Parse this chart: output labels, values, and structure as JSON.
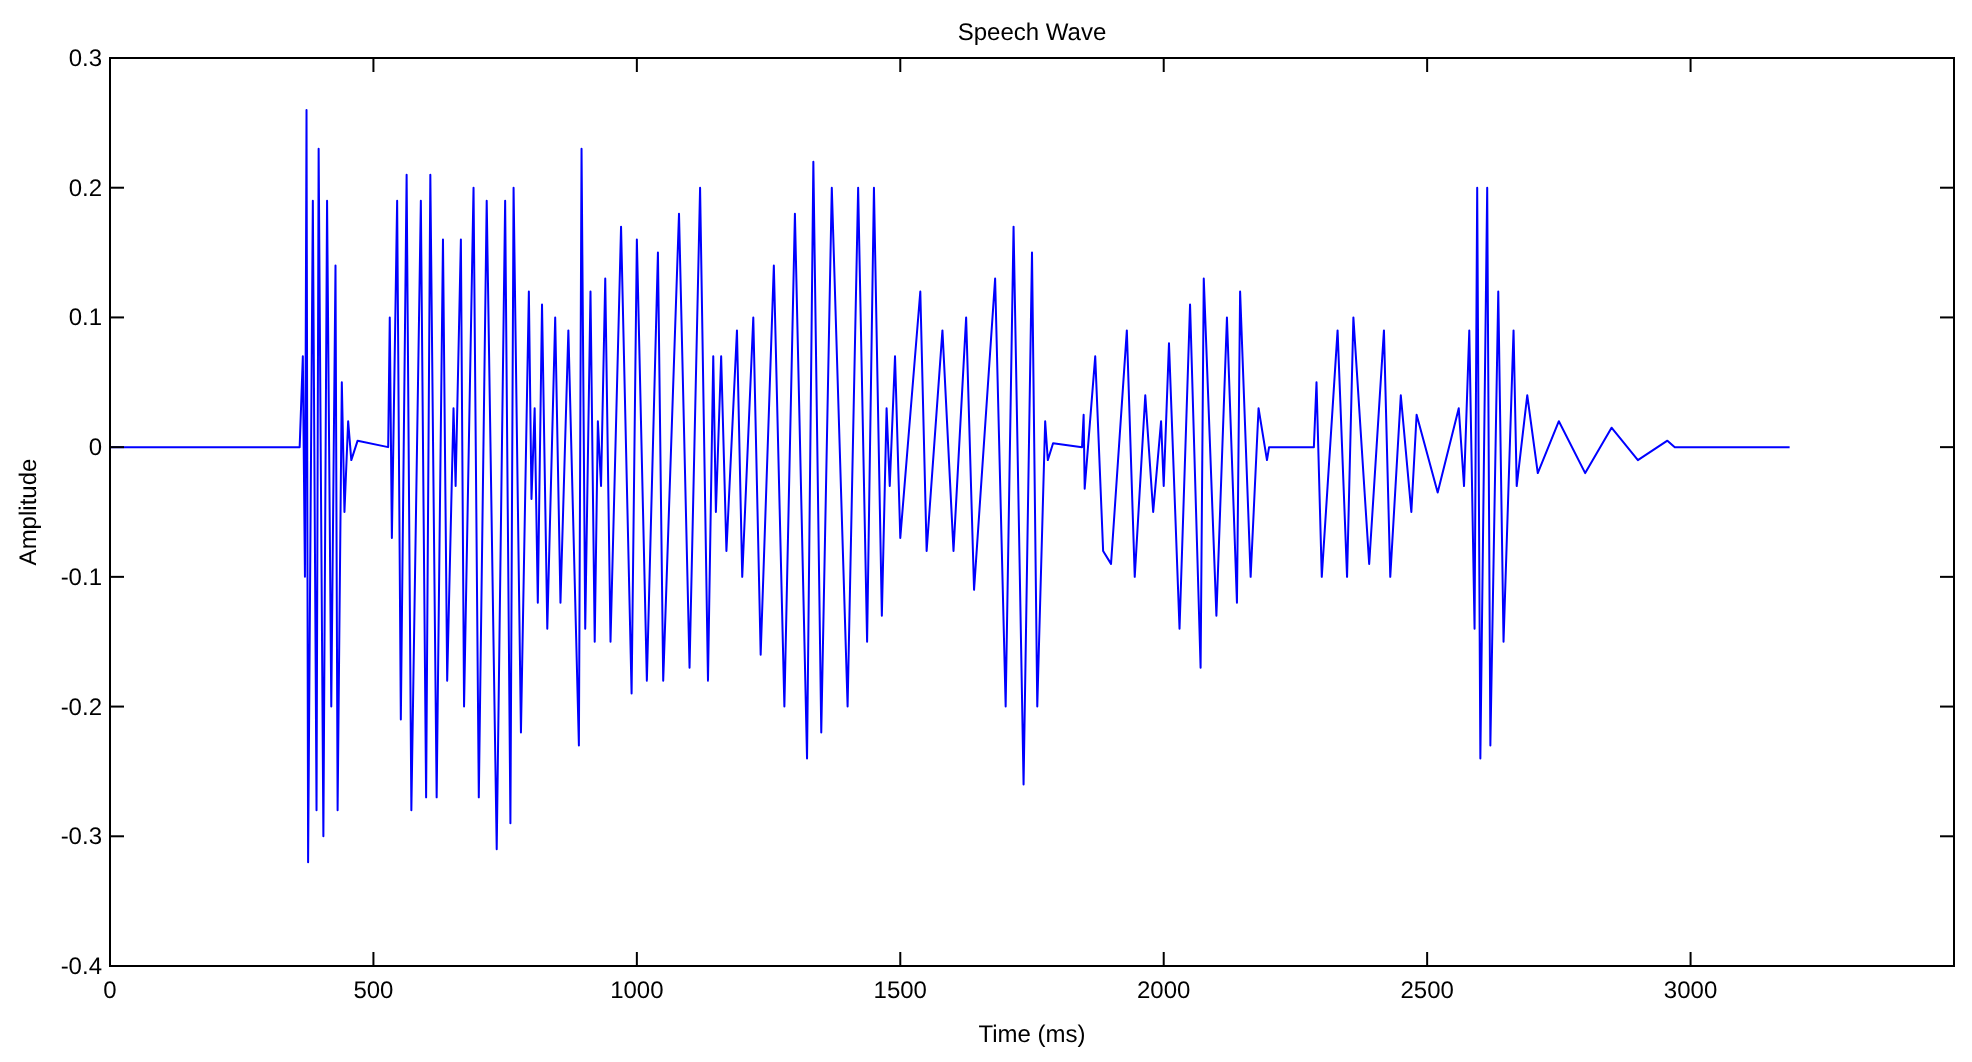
{
  "chart_data": {
    "type": "line",
    "title": "Speech Wave",
    "xlabel": "Time (ms)",
    "ylabel": "Amplitude",
    "xlim": [
      0,
      3500
    ],
    "xticks": [
      0,
      500,
      1000,
      1500,
      2000,
      2500,
      3000
    ],
    "ylim": [
      -0.4,
      0.3
    ],
    "yticks": [
      -0.4,
      -0.3,
      -0.2,
      -0.1,
      0,
      0.1,
      0.2,
      0.3
    ],
    "grid": false,
    "marker": "none",
    "line_style": "solid",
    "series": [
      {
        "color": "#0000ff",
        "x": [
          0,
          360,
          366,
          370,
          373,
          376,
          385,
          392,
          396,
          405,
          412,
          420,
          428,
          432,
          440,
          445,
          452,
          458,
          470,
          528,
          531,
          535,
          545,
          552,
          563,
          572,
          590,
          600,
          608,
          620,
          632,
          640,
          652,
          656,
          666,
          672,
          690,
          700,
          715,
          734,
          750,
          760,
          766,
          780,
          795,
          800,
          806,
          812,
          820,
          830,
          845,
          855,
          870,
          890,
          895,
          902,
          912,
          920,
          926,
          932,
          940,
          950,
          970,
          990,
          1000,
          1019,
          1040,
          1050,
          1080,
          1100,
          1120,
          1135,
          1145,
          1150,
          1160,
          1170,
          1190,
          1200,
          1221,
          1235,
          1260,
          1280,
          1300,
          1323,
          1335,
          1350,
          1370,
          1400,
          1420,
          1437,
          1450,
          1465,
          1474,
          1480,
          1490,
          1500,
          1538,
          1550,
          1580,
          1601,
          1625,
          1640,
          1680,
          1700,
          1715,
          1734,
          1750,
          1760,
          1775,
          1780,
          1790,
          1845,
          1848,
          1850,
          1870,
          1885,
          1900,
          1930,
          1945,
          1965,
          1980,
          1995,
          2000,
          2010,
          2030,
          2050,
          2070,
          2076,
          2100,
          2120,
          2139,
          2145,
          2165,
          2180,
          2196,
          2200,
          2285,
          2290,
          2300,
          2330,
          2348,
          2360,
          2390,
          2418,
          2430,
          2450,
          2470,
          2480,
          2520,
          2560,
          2570,
          2580,
          2590,
          2595,
          2601,
          2614,
          2620,
          2635,
          2645,
          2664,
          2670,
          2690,
          2710,
          2750,
          2800,
          2850,
          2900,
          2956,
          2970,
          3188
        ],
        "values": [
          0,
          0,
          0.07,
          -0.1,
          0.26,
          -0.32,
          0.19,
          -0.28,
          0.23,
          -0.3,
          0.19,
          -0.2,
          0.14,
          -0.28,
          0.05,
          -0.05,
          0.02,
          -0.01,
          0.005,
          0,
          0.1,
          -0.07,
          0.19,
          -0.21,
          0.21,
          -0.28,
          0.19,
          -0.27,
          0.21,
          -0.27,
          0.16,
          -0.18,
          0.03,
          -0.03,
          0.16,
          -0.2,
          0.2,
          -0.27,
          0.19,
          -0.31,
          0.19,
          -0.29,
          0.2,
          -0.22,
          0.12,
          -0.04,
          0.03,
          -0.12,
          0.11,
          -0.14,
          0.1,
          -0.12,
          0.09,
          -0.23,
          0.23,
          -0.14,
          0.12,
          -0.15,
          0.02,
          -0.03,
          0.13,
          -0.15,
          0.17,
          -0.19,
          0.16,
          -0.18,
          0.15,
          -0.18,
          0.18,
          -0.17,
          0.2,
          -0.18,
          0.07,
          -0.05,
          0.07,
          -0.08,
          0.09,
          -0.1,
          0.1,
          -0.16,
          0.14,
          -0.2,
          0.18,
          -0.24,
          0.22,
          -0.22,
          0.2,
          -0.2,
          0.2,
          -0.15,
          0.2,
          -0.13,
          0.03,
          -0.03,
          0.07,
          -0.07,
          0.12,
          -0.08,
          0.09,
          -0.08,
          0.1,
          -0.11,
          0.13,
          -0.2,
          0.17,
          -0.26,
          0.15,
          -0.2,
          0.02,
          -0.01,
          0.003,
          0,
          0.025,
          -0.032,
          0.07,
          -0.08,
          -0.09,
          0.09,
          -0.1,
          0.04,
          -0.05,
          0.02,
          -0.03,
          0.08,
          -0.14,
          0.11,
          -0.17,
          0.13,
          -0.13,
          0.1,
          -0.12,
          0.12,
          -0.1,
          0.03,
          -0.01,
          0,
          0,
          0.05,
          -0.1,
          0.09,
          -0.1,
          0.1,
          -0.09,
          0.09,
          -0.1,
          0.04,
          -0.05,
          0.025,
          -0.035,
          0.03,
          -0.03,
          0.09,
          -0.14,
          0.2,
          -0.24,
          0.2,
          -0.23,
          0.12,
          -0.15,
          0.09,
          -0.03,
          0.04,
          -0.02,
          0.02,
          -0.02,
          0.015,
          -0.01,
          0.005,
          0,
          0
        ]
      }
    ]
  }
}
